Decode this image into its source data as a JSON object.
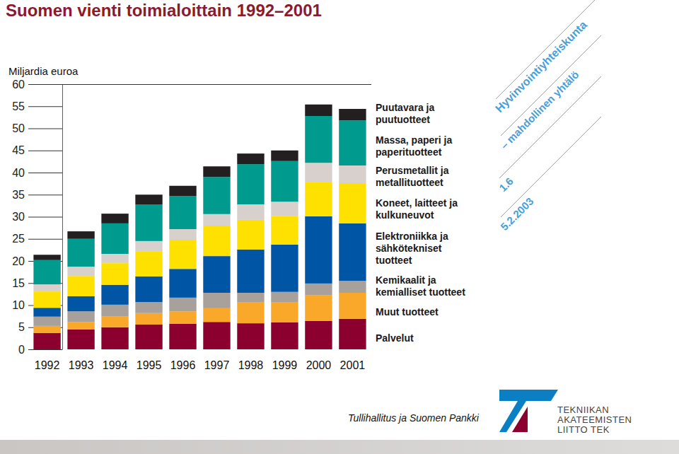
{
  "chart_data": {
    "type": "bar",
    "stacked": true,
    "title": "Suomen vienti toimialoittain 1992–2001",
    "y_label": "Miljardia euroa",
    "categories": [
      "1992",
      "1993",
      "1994",
      "1995",
      "1996",
      "1997",
      "1998",
      "1999",
      "2000",
      "2001"
    ],
    "series": [
      {
        "name": "Puutavara ja puutuotteet",
        "color": "#231f20",
        "values": [
          1.2,
          1.7,
          2.2,
          2.2,
          2.3,
          2.4,
          2.4,
          2.4,
          2.6,
          2.6
        ]
      },
      {
        "name": "Massa, paperi ja paperituotteet",
        "color": "#009a8f",
        "values": [
          5.5,
          6.3,
          6.9,
          8.3,
          7.5,
          8.4,
          9.1,
          9.2,
          10.6,
          10.2
        ]
      },
      {
        "name": "Perusmetallit ja metallituotteet",
        "color": "#d8d0cd",
        "values": [
          1.6,
          2.1,
          2.1,
          2.4,
          2.4,
          2.6,
          3.5,
          3.2,
          4.3,
          4.0
        ]
      },
      {
        "name": "Koneet, laitteet ja kulkuneuvot",
        "color": "#ffe100",
        "values": [
          3.7,
          4.6,
          4.9,
          5.6,
          6.6,
          6.9,
          6.7,
          6.5,
          7.8,
          9.1
        ]
      },
      {
        "name": "Elektroniikka ja sähkötekniset tuotteet",
        "color": "#0055a5",
        "values": [
          2.0,
          3.4,
          4.5,
          5.8,
          6.5,
          8.3,
          9.8,
          10.7,
          15.2,
          13.0
        ]
      },
      {
        "name": "Kemikaalit ja kemialliset tuotteet",
        "color": "#a8a09b",
        "values": [
          2.1,
          2.4,
          2.6,
          2.5,
          3.1,
          3.5,
          2.2,
          2.4,
          2.6,
          2.7
        ]
      },
      {
        "name": "Muut tuotteet",
        "color": "#f9a829",
        "values": [
          1.6,
          1.7,
          2.5,
          2.6,
          2.8,
          3.1,
          4.7,
          4.5,
          5.9,
          5.9
        ]
      },
      {
        "name": "Palvelut",
        "color": "#8c0030",
        "values": [
          3.7,
          4.5,
          5.0,
          5.6,
          5.8,
          6.2,
          5.9,
          6.1,
          6.4,
          6.9
        ]
      }
    ],
    "ylim": [
      0,
      60
    ],
    "yticks": [
      0,
      5,
      10,
      15,
      20,
      25,
      30,
      35,
      40,
      45,
      50,
      55,
      60
    ],
    "grid": false,
    "legend": "right",
    "annotations": [
      "Hyvinvointiyhteiskunta",
      "– mahdollinen yhtälö",
      "1.6",
      "5.2.2003",
      "Tullihallitus ja Suomen Pankki",
      "TEKNIIKAN",
      "AKATEEMISTEN",
      "LIITTO TEK"
    ]
  }
}
